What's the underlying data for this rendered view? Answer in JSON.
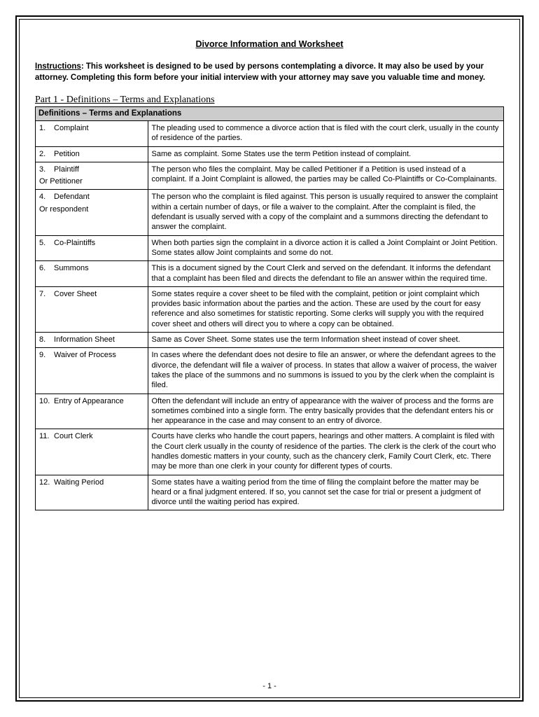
{
  "title": "Divorce Information and Worksheet",
  "instructions_label": "Instructions",
  "instructions_text": ":  This worksheet is designed to be used by persons contemplating a divorce. It may also be used by your attorney. Completing this form before your initial interview with your attorney may save you valuable time and money.",
  "part_heading": "Part 1 - Definitions – Terms and Explanations",
  "table_header": "Definitions – Terms and Explanations",
  "rows": [
    {
      "num": "1.",
      "term": "Complaint",
      "extra": "",
      "def": "The pleading used to commence a divorce action that is filed with the court clerk, usually in the county of residence of the parties."
    },
    {
      "num": "2.",
      "term": "Petition",
      "extra": "",
      "def": "Same as complaint. Some States use the term Petition instead of complaint."
    },
    {
      "num": "3.",
      "term": " Plaintiff",
      "extra": "Or Petitioner",
      "def": "The person who files the complaint. May be called Petitioner if a Petition is used instead of a complaint.  If a Joint Complaint is allowed, the parties may be called Co-Plaintiffs or Co-Complainants."
    },
    {
      "num": "4.",
      "term": " Defendant",
      "extra": "Or respondent",
      "def": "The person who the complaint is filed against.  This person is usually required to answer the complaint within a certain number of days, or file a waiver to the complaint.  After the complaint is filed, the defendant is usually served with a copy of the complaint and a summons directing the defendant to answer the complaint."
    },
    {
      "num": "5.",
      "term": "Co-Plaintiffs",
      "extra": "",
      "def": "When both parties sign the complaint in a divorce action it is called a Joint Complaint or Joint Petition. Some states allow Joint complaints and some do not."
    },
    {
      "num": "6.",
      "term": "Summons",
      "extra": "",
      "def": "This is a document signed by the Court Clerk and served on the defendant. It informs the defendant that a complaint has been filed and directs the defendant to file an answer within the required time."
    },
    {
      "num": "7.",
      "term": "Cover Sheet",
      "extra": "",
      "def": "Some states require a cover sheet to be filed with the complaint, petition or joint complaint which provides basic information about the parties and the action. These are used by the court for easy reference and also sometimes for statistic reporting.  Some clerks will supply you with the required cover sheet and others will direct you to where a copy can be obtained."
    },
    {
      "num": "8.",
      "term": "Information Sheet",
      "extra": "",
      "def": "Same as Cover Sheet. Some states use the term Information sheet instead of cover sheet."
    },
    {
      "num": "9.",
      "term": "Waiver of Process",
      "extra": "",
      "def": "In cases where the defendant does not desire to file an answer, or where the defendant agrees to the divorce, the defendant will file a waiver of process. In states that allow a waiver of process, the waiver takes the place of the summons and no summons is issued to you by the clerk when the complaint is filed."
    },
    {
      "num": "10.",
      "term": "Entry of Appearance",
      "extra": "",
      "def": "Often the defendant will include an entry of appearance with the waiver of process and the forms are sometimes combined into a single form.  The entry basically provides that the defendant enters his or her appearance in the case and may consent to an entry of divorce."
    },
    {
      "num": "11.",
      "term": "Court Clerk",
      "extra": "",
      "def": "Courts have clerks who handle the court papers, hearings and other matters. A complaint is filed with the Court clerk usually in the county of residence of the parties.  The clerk is the clerk of the court who handles domestic matters in your county, such as the chancery clerk, Family Court Clerk, etc.  There may be more than one clerk in your county for different types of courts."
    },
    {
      "num": "12.",
      "term": "Waiting Period",
      "extra": "",
      "def": "Some states have a waiting period from the time of filing the complaint before the matter may be heard or a final judgment entered.  If so, you cannot set the case for trial or present a judgment of divorce until the waiting period has expired."
    }
  ],
  "page_number": "- 1 -"
}
